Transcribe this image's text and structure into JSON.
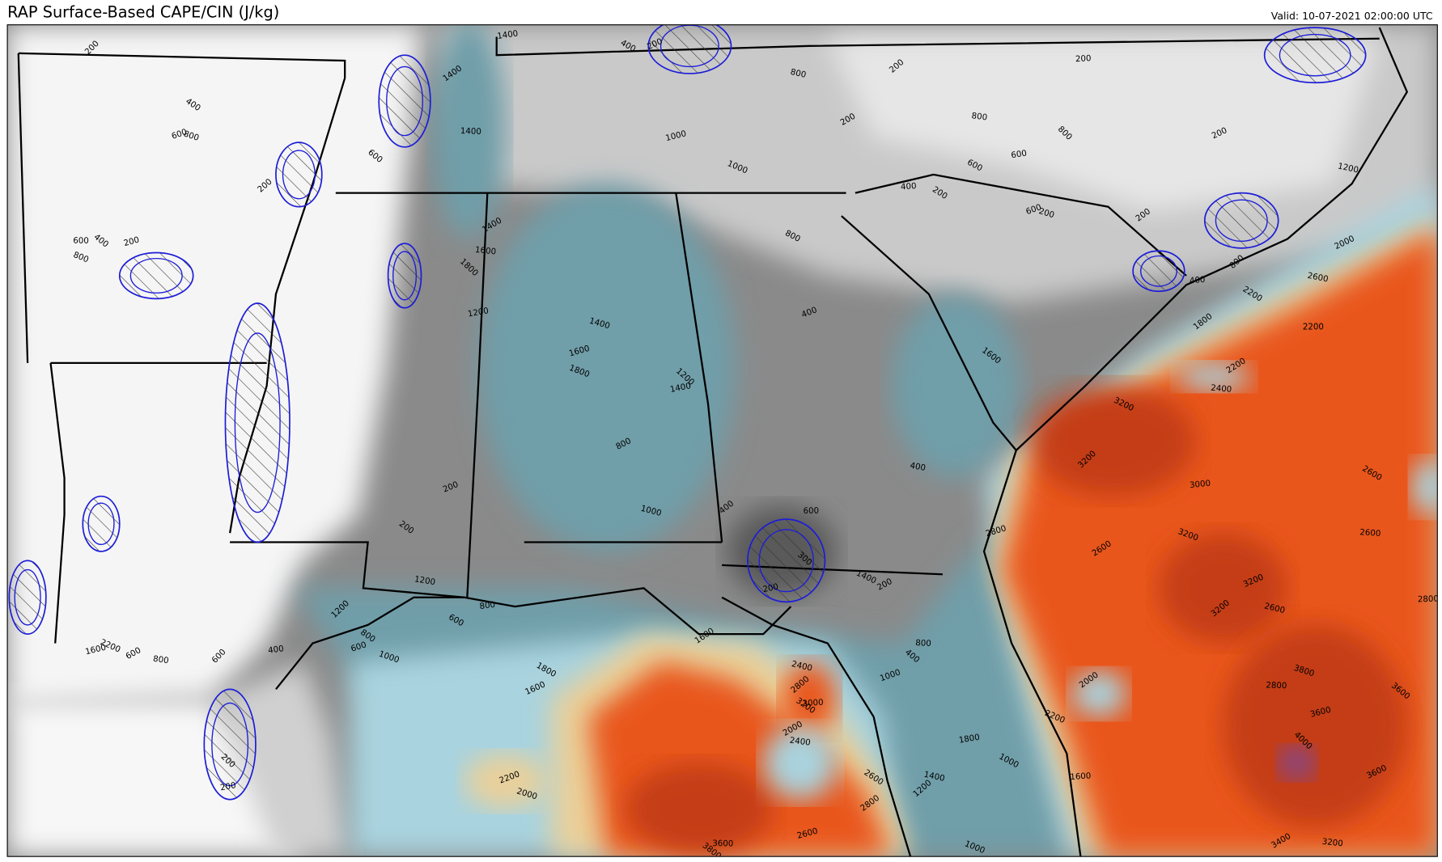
{
  "header": {
    "title": "RAP Surface-Based CAPE/CIN (J/kg)",
    "valid": "Valid: 10-07-2021 02:00:00 UTC"
  },
  "contour_labels": [
    "200",
    "1400",
    "400",
    "200",
    "800",
    "200",
    "200",
    "400",
    "600",
    "800",
    "1400",
    "1400",
    "600",
    "1000",
    "1000",
    "200",
    "800",
    "800",
    "600",
    "600",
    "200",
    "1200",
    "200",
    "400",
    "200",
    "600",
    "200",
    "200",
    "600",
    "400",
    "200",
    "800",
    "1400",
    "1600",
    "1800",
    "1200",
    "800",
    "2000",
    "2600",
    "800",
    "400",
    "2200",
    "400",
    "1400",
    "1800",
    "2200",
    "1600",
    "1600",
    "1800",
    "2200",
    "2400",
    "1200",
    "1400",
    "3200",
    "800",
    "400",
    "3200",
    "3000",
    "2600",
    "200",
    "1000",
    "400",
    "600",
    "200",
    "2800",
    "3200",
    "2600",
    "2600",
    "300",
    "200",
    "1400",
    "200",
    "1200",
    "1200",
    "800",
    "600",
    "3200",
    "2600",
    "3200",
    "2800",
    "800",
    "600",
    "1000",
    "1600",
    "800",
    "400",
    "1600",
    "2200",
    "600",
    "800",
    "600",
    "400",
    "1800",
    "1600",
    "2400",
    "2800",
    "3000",
    "3200",
    "1000",
    "3800",
    "2000",
    "2800",
    "3600",
    "3600",
    "2200",
    "2000",
    "2400",
    "4000",
    "1800",
    "1000",
    "3600",
    "1400",
    "1200",
    "1600",
    "2600",
    "2200",
    "2000",
    "2800",
    "3600",
    "3800",
    "2600",
    "1000",
    "3400",
    "3200",
    "200",
    "200"
  ]
}
